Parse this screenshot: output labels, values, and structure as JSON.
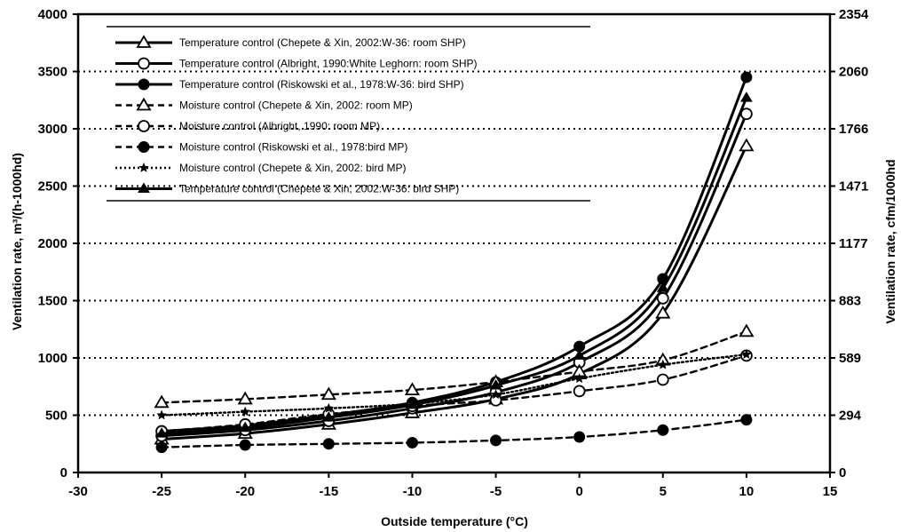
{
  "chart_data": {
    "type": "line",
    "title": "",
    "xlabel": "Outside temperature (°C)",
    "ylabel_left": "Ventilation rate, m³/(h-1000hd)",
    "ylabel_right": "Ventilation rate, cfm/1000hd",
    "xlim": [
      -30,
      15
    ],
    "ylim": [
      0,
      4000
    ],
    "x_ticks": [
      -30,
      -25,
      -20,
      -15,
      -10,
      -5,
      0,
      5,
      10,
      15
    ],
    "y_ticks_left": [
      0,
      500,
      1000,
      1500,
      2000,
      2500,
      3000,
      3500,
      4000
    ],
    "y_ticks_right": [
      "0",
      "294",
      "589",
      "883",
      "1177",
      "1471",
      "1766",
      "2060",
      "2354"
    ],
    "grid": "horizontal dotted",
    "legend_position": "top-left",
    "x": [
      -25,
      -20,
      -15,
      -10,
      -5,
      0,
      5,
      10
    ],
    "series": [
      {
        "name": "Temperature control (Chepete & Xin, 2002:W-36: room SHP)",
        "style": "solid",
        "marker": "triangle-open",
        "values": [
          290,
          340,
          420,
          520,
          640,
          860,
          1390,
          2850
        ]
      },
      {
        "name": "Temperature control (Albright, 1990:White Leghorn: room SHP)",
        "style": "solid",
        "marker": "circle-open",
        "values": [
          320,
          370,
          450,
          560,
          700,
          960,
          1520,
          3130
        ]
      },
      {
        "name": "Temperature control (Riskowski et al., 1978:W-36: bird SHP)",
        "style": "solid",
        "marker": "circle-filled",
        "values": [
          360,
          410,
          500,
          610,
          790,
          1100,
          1690,
          3450
        ]
      },
      {
        "name": "Moisture control (Chepete & Xin, 2002: room MP)",
        "style": "dashed",
        "marker": "triangle-open",
        "values": [
          610,
          640,
          680,
          720,
          790,
          880,
          980,
          1230
        ]
      },
      {
        "name": "Moisture control (Albright, 1990: room MP)",
        "style": "dashed",
        "marker": "circle-open",
        "values": [
          360,
          420,
          510,
          580,
          630,
          710,
          810,
          1020
        ]
      },
      {
        "name": "Moisture control (Riskowski et al., 1978:bird MP)",
        "style": "dashed",
        "marker": "circle-filled",
        "values": [
          220,
          240,
          250,
          260,
          280,
          310,
          370,
          460
        ]
      },
      {
        "name": "Moisture control (Chepete & Xin, 2002: bird MP)",
        "style": "dotted",
        "marker": "star-filled",
        "values": [
          500,
          530,
          560,
          600,
          680,
          820,
          940,
          1030
        ]
      },
      {
        "name": "Temperature control (Chepete & Xin, 2002:W-36: bird SHP)",
        "style": "solid",
        "marker": "triangle-filled",
        "values": [
          340,
          390,
          480,
          590,
          760,
          1020,
          1610,
          3270
        ]
      }
    ]
  }
}
